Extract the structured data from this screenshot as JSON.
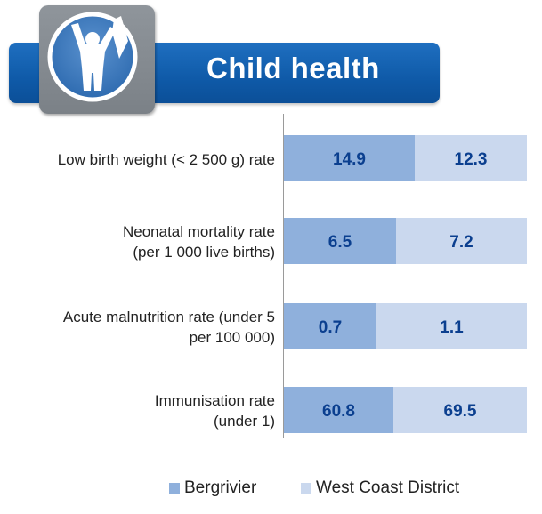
{
  "header": {
    "title": "Child health",
    "icon": "child-raising-arms-icon"
  },
  "colors": {
    "bergrivier": "#8fb0dc",
    "west_coast": "#cad8ee",
    "value_text": "#0b3f8f",
    "banner": "#1566b8"
  },
  "chart_data": {
    "type": "bar",
    "stacked_percent": true,
    "categories": [
      "Low birth weight (< 2 500 g) rate",
      "Neonatal mortality rate (per 1 000 live births)",
      "Acute malnutrition rate (under 5 per 100 000)",
      "Immunisation rate (under 1)"
    ],
    "category_lines": [
      [
        "Low birth weight (< 2 500 g) rate"
      ],
      [
        "Neonatal mortality rate",
        "(per 1 000 live births)"
      ],
      [
        "Acute malnutrition rate (under 5",
        "per 100 000)"
      ],
      [
        "Immunisation rate",
        "(under 1)"
      ]
    ],
    "series": [
      {
        "name": "Bergrivier",
        "values": [
          14.9,
          6.5,
          0.7,
          60.8
        ],
        "labels": [
          "14.9",
          "6.5",
          "0.7",
          "60.8"
        ]
      },
      {
        "name": "West Coast District",
        "values": [
          12.3,
          7.2,
          1.1,
          69.5
        ],
        "labels": [
          "12.3",
          "7.2",
          "1.1",
          "69.5"
        ]
      }
    ],
    "display_split": [
      0.54,
      0.46,
      0.38,
      0.45
    ],
    "legend_position": "bottom",
    "grid": false
  }
}
